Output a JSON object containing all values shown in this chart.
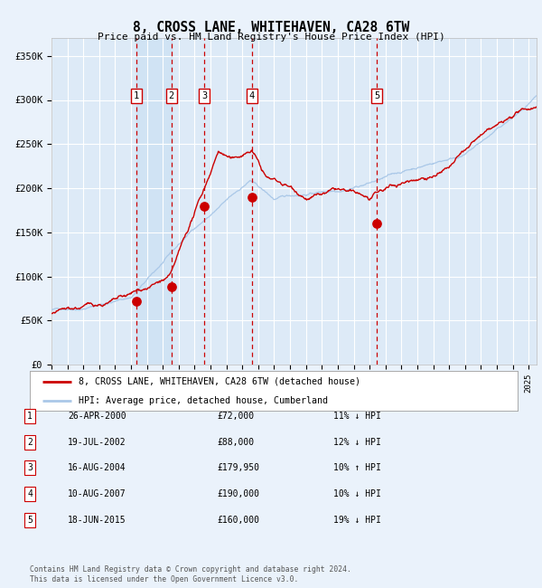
{
  "title": "8, CROSS LANE, WHITEHAVEN, CA28 6TW",
  "subtitle": "Price paid vs. HM Land Registry's House Price Index (HPI)",
  "xmin": 1995.0,
  "xmax": 2025.5,
  "ymin": 0,
  "ymax": 370000,
  "yticks": [
    0,
    50000,
    100000,
    150000,
    200000,
    250000,
    300000,
    350000
  ],
  "background_color": "#eaf2fb",
  "plot_bg": "#ddeaf7",
  "grid_color": "#ffffff",
  "sale_color": "#cc0000",
  "hpi_color": "#aac8e8",
  "purchases": [
    {
      "label": "1",
      "date_year": 2000.32,
      "price": 72000
    },
    {
      "label": "2",
      "date_year": 2002.54,
      "price": 88000
    },
    {
      "label": "3",
      "date_year": 2004.62,
      "price": 179950
    },
    {
      "label": "4",
      "date_year": 2007.61,
      "price": 190000
    },
    {
      "label": "5",
      "date_year": 2015.46,
      "price": 160000
    }
  ],
  "legend_sale_label": "8, CROSS LANE, WHITEHAVEN, CA28 6TW (detached house)",
  "legend_hpi_label": "HPI: Average price, detached house, Cumberland",
  "table_entries": [
    {
      "num": "1",
      "date": "26-APR-2000",
      "price": "£72,000",
      "pct": "11% ↓ HPI"
    },
    {
      "num": "2",
      "date": "19-JUL-2002",
      "price": "£88,000",
      "pct": "12% ↓ HPI"
    },
    {
      "num": "3",
      "date": "16-AUG-2004",
      "price": "£179,950",
      "pct": "10% ↑ HPI"
    },
    {
      "num": "4",
      "date": "10-AUG-2007",
      "price": "£190,000",
      "pct": "10% ↓ HPI"
    },
    {
      "num": "5",
      "date": "18-JUN-2015",
      "price": "£160,000",
      "pct": "19% ↓ HPI"
    }
  ],
  "footer": "Contains HM Land Registry data © Crown copyright and database right 2024.\nThis data is licensed under the Open Government Licence v3.0.",
  "shade_color": "#c8dff2"
}
